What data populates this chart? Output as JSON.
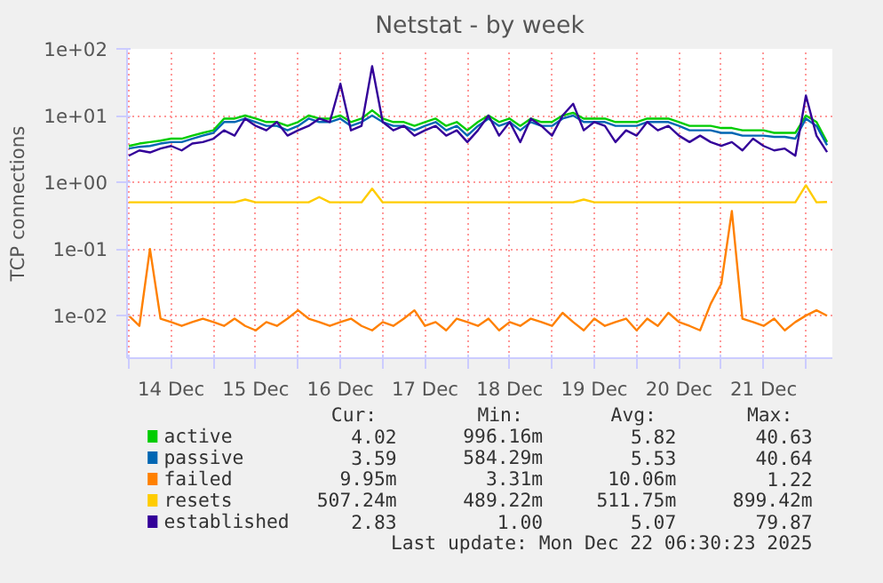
{
  "chart_data": {
    "type": "line",
    "title": "Netstat - by week",
    "ylabel": "TCP connections",
    "log": true,
    "grid": true,
    "legend": "bottom",
    "xlim": [
      "2025-12-13T23:30",
      "2025-12-22T07:30"
    ],
    "xticks": [
      {
        "value": "2025-12-14T00:00",
        "label": null
      },
      {
        "value": "2025-12-14T12:00",
        "label": "14 Dec"
      },
      {
        "value": "2025-12-15T00:00",
        "label": null
      },
      {
        "value": "2025-12-15T12:00",
        "label": "15 Dec"
      },
      {
        "value": "2025-12-16T00:00",
        "label": null
      },
      {
        "value": "2025-12-16T12:00",
        "label": "16 Dec"
      },
      {
        "value": "2025-12-17T00:00",
        "label": null
      },
      {
        "value": "2025-12-17T12:00",
        "label": "17 Dec"
      },
      {
        "value": "2025-12-18T00:00",
        "label": null
      },
      {
        "value": "2025-12-18T12:00",
        "label": "18 Dec"
      },
      {
        "value": "2025-12-19T00:00",
        "label": null
      },
      {
        "value": "2025-12-19T12:00",
        "label": "19 Dec"
      },
      {
        "value": "2025-12-20T00:00",
        "label": null
      },
      {
        "value": "2025-12-20T12:00",
        "label": "20 Dec"
      },
      {
        "value": "2025-12-21T00:00",
        "label": null
      },
      {
        "value": "2025-12-21T12:00",
        "label": "21 Dec"
      },
      {
        "value": "2025-12-22T00:00",
        "label": null
      }
    ],
    "ylim": [
      0.0023,
      100
    ],
    "yticks": [
      {
        "value": 0.01,
        "label": "1e-02"
      },
      {
        "value": 0.1,
        "label": "1e-01"
      },
      {
        "value": 1,
        "label": "1e+00"
      },
      {
        "value": 10,
        "label": "1e+01"
      },
      {
        "value": 100,
        "label": "1e+02"
      }
    ],
    "x": [
      "2025-12-14T00:00",
      "2025-12-14T03:00",
      "2025-12-14T06:00",
      "2025-12-14T09:00",
      "2025-12-14T12:00",
      "2025-12-14T15:00",
      "2025-12-14T18:00",
      "2025-12-14T21:00",
      "2025-12-15T00:00",
      "2025-12-15T03:00",
      "2025-12-15T06:00",
      "2025-12-15T09:00",
      "2025-12-15T12:00",
      "2025-12-15T15:00",
      "2025-12-15T18:00",
      "2025-12-15T21:00",
      "2025-12-16T00:00",
      "2025-12-16T03:00",
      "2025-12-16T06:00",
      "2025-12-16T09:00",
      "2025-12-16T12:00",
      "2025-12-16T15:00",
      "2025-12-16T18:00",
      "2025-12-16T21:00",
      "2025-12-17T00:00",
      "2025-12-17T03:00",
      "2025-12-17T06:00",
      "2025-12-17T09:00",
      "2025-12-17T12:00",
      "2025-12-17T15:00",
      "2025-12-17T18:00",
      "2025-12-17T21:00",
      "2025-12-18T00:00",
      "2025-12-18T03:00",
      "2025-12-18T06:00",
      "2025-12-18T09:00",
      "2025-12-18T12:00",
      "2025-12-18T15:00",
      "2025-12-18T18:00",
      "2025-12-18T21:00",
      "2025-12-19T00:00",
      "2025-12-19T03:00",
      "2025-12-19T06:00",
      "2025-12-19T09:00",
      "2025-12-19T12:00",
      "2025-12-19T15:00",
      "2025-12-19T18:00",
      "2025-12-19T21:00",
      "2025-12-20T00:00",
      "2025-12-20T03:00",
      "2025-12-20T06:00",
      "2025-12-20T09:00",
      "2025-12-20T12:00",
      "2025-12-20T15:00",
      "2025-12-20T18:00",
      "2025-12-20T21:00",
      "2025-12-21T00:00",
      "2025-12-21T03:00",
      "2025-12-21T06:00",
      "2025-12-21T09:00",
      "2025-12-21T12:00",
      "2025-12-21T15:00",
      "2025-12-21T18:00",
      "2025-12-21T21:00",
      "2025-12-22T00:00",
      "2025-12-22T03:00",
      "2025-12-22T06:00"
    ],
    "series": [
      {
        "name": "active",
        "color": "#00cc00",
        "values": [
          3.5,
          3.8,
          4,
          4.2,
          4.5,
          4.5,
          5,
          5.5,
          6,
          9,
          9,
          10,
          9,
          8,
          8,
          7,
          8,
          10,
          9,
          9,
          10,
          8,
          9,
          12,
          9,
          8,
          8,
          7,
          8,
          9,
          7,
          8,
          6,
          8,
          10,
          8,
          9,
          7,
          9,
          8,
          8,
          10,
          11,
          9,
          9,
          9,
          8,
          8,
          8,
          9,
          9,
          9,
          8,
          7,
          7,
          7,
          6.5,
          6.5,
          6,
          6,
          6,
          5.5,
          5.5,
          5.5,
          10,
          8,
          4.02
        ]
      },
      {
        "name": "passive",
        "color": "#0066b3",
        "values": [
          3.2,
          3.4,
          3.5,
          3.8,
          4,
          4,
          4.5,
          5,
          5.5,
          8,
          8,
          9,
          8,
          7,
          7,
          6,
          7,
          9,
          8,
          8,
          9,
          7,
          8,
          10,
          8,
          7,
          7,
          6,
          7,
          8,
          6,
          7,
          5,
          7,
          9,
          7,
          8,
          6,
          8,
          7,
          7,
          9,
          10,
          8,
          8,
          8,
          7,
          7,
          7,
          8,
          8,
          8,
          7,
          6,
          6,
          6,
          5.5,
          5.5,
          5,
          5,
          5,
          4.8,
          4.8,
          4.5,
          9,
          7,
          3.59
        ]
      },
      {
        "name": "failed",
        "color": "#ff8000",
        "values": [
          0.01,
          0.007,
          0.1,
          0.009,
          0.008,
          0.007,
          0.008,
          0.009,
          0.008,
          0.007,
          0.009,
          0.007,
          0.006,
          0.008,
          0.007,
          0.009,
          0.012,
          0.009,
          0.008,
          0.007,
          0.008,
          0.009,
          0.007,
          0.006,
          0.008,
          0.007,
          0.009,
          0.012,
          0.007,
          0.008,
          0.006,
          0.009,
          0.008,
          0.007,
          0.009,
          0.006,
          0.008,
          0.007,
          0.009,
          0.008,
          0.007,
          0.011,
          0.008,
          0.006,
          0.009,
          0.007,
          0.008,
          0.009,
          0.006,
          0.009,
          0.007,
          0.011,
          0.008,
          0.007,
          0.006,
          0.015,
          0.03,
          0.37,
          0.009,
          0.008,
          0.007,
          0.009,
          0.006,
          0.008,
          0.01,
          0.012,
          0.00995
        ]
      },
      {
        "name": "resets",
        "color": "#ffcc00",
        "values": [
          0.5,
          0.5,
          0.5,
          0.5,
          0.5,
          0.5,
          0.5,
          0.5,
          0.5,
          0.5,
          0.5,
          0.55,
          0.5,
          0.5,
          0.5,
          0.5,
          0.5,
          0.5,
          0.6,
          0.5,
          0.5,
          0.5,
          0.5,
          0.8,
          0.5,
          0.5,
          0.5,
          0.5,
          0.5,
          0.5,
          0.5,
          0.5,
          0.5,
          0.5,
          0.5,
          0.5,
          0.5,
          0.5,
          0.5,
          0.5,
          0.5,
          0.5,
          0.5,
          0.55,
          0.5,
          0.5,
          0.5,
          0.5,
          0.5,
          0.5,
          0.5,
          0.5,
          0.5,
          0.5,
          0.5,
          0.5,
          0.5,
          0.5,
          0.5,
          0.5,
          0.5,
          0.5,
          0.5,
          0.5,
          0.9,
          0.5,
          0.507
        ]
      },
      {
        "name": "established",
        "color": "#330099",
        "values": [
          2.5,
          3,
          2.8,
          3.2,
          3.5,
          3,
          3.8,
          4,
          4.5,
          6,
          5,
          9,
          7,
          6,
          8,
          5,
          6,
          7,
          9,
          8,
          30,
          6,
          7,
          55,
          8,
          6,
          7,
          5,
          6,
          7,
          5,
          6,
          4,
          6,
          10,
          5,
          8,
          4,
          9,
          7,
          5,
          10,
          15,
          6,
          8,
          7,
          4,
          6,
          5,
          8,
          6,
          7,
          5,
          4,
          5,
          4,
          3.5,
          4,
          3,
          4.5,
          3.5,
          3,
          3.2,
          2.5,
          20,
          5,
          2.83
        ]
      }
    ],
    "annotations": [
      "Cur:",
      "Min:",
      "Avg:",
      "Max:",
      "4.02",
      "996.16m",
      "5.82",
      "40.63",
      "3.59",
      "584.29m",
      "5.53",
      "40.64",
      "9.95m",
      "3.31m",
      "10.06m",
      "1.22",
      "507.24m",
      "489.22m",
      "511.75m",
      "899.42m",
      "2.83",
      "1.00",
      "5.07",
      "79.87",
      "Last update: Mon Dec 22 06:30:23 2025"
    ]
  }
}
